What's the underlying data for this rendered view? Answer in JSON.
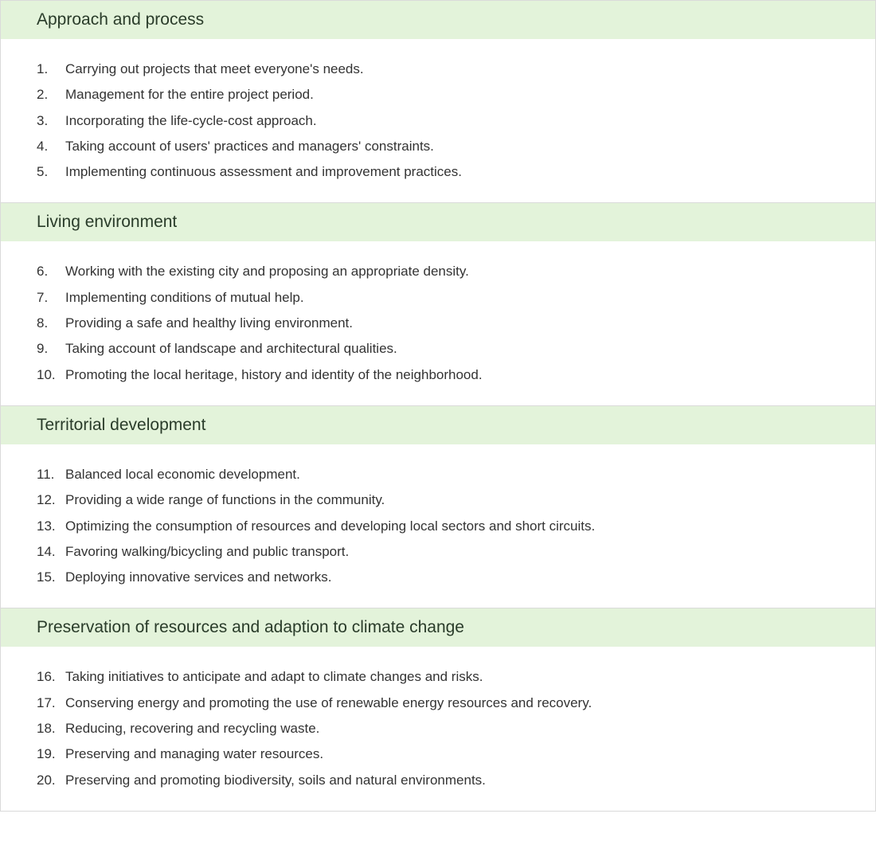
{
  "colors": {
    "header_bg": "#e3f3da",
    "header_text": "#2a3c2a",
    "body_text": "#333333",
    "border": "#dadada",
    "body_bg": "#ffffff"
  },
  "sections": [
    {
      "title": "Approach and process",
      "items": [
        {
          "num": "1.",
          "text": "Carrying out projects that meet everyone's needs."
        },
        {
          "num": "2.",
          "text": "Management for the entire project period."
        },
        {
          "num": "3.",
          "text": "Incorporating the life-cycle-cost approach."
        },
        {
          "num": "4.",
          "text": "Taking account of users' practices and managers' constraints."
        },
        {
          "num": "5.",
          "text": "Implementing continuous assessment and improvement practices."
        }
      ]
    },
    {
      "title": "Living environment",
      "items": [
        {
          "num": "6.",
          "text": "Working with the existing city and proposing an appropriate density."
        },
        {
          "num": "7.",
          "text": "Implementing conditions of mutual help."
        },
        {
          "num": "8.",
          "text": "Providing a safe and healthy living environment."
        },
        {
          "num": "9.",
          "text": "Taking account of landscape and architectural qualities."
        },
        {
          "num": "10.",
          "text": "Promoting the local heritage, history and identity of the neighborhood."
        }
      ]
    },
    {
      "title": "Territorial development",
      "items": [
        {
          "num": "11.",
          "text": "Balanced local economic development."
        },
        {
          "num": "12.",
          "text": "Providing a wide range of functions in the community."
        },
        {
          "num": "13.",
          "text": "Optimizing the consumption of resources and developing local sectors and short circuits."
        },
        {
          "num": "14.",
          "text": "Favoring walking/bicycling and public transport."
        },
        {
          "num": "15.",
          "text": "Deploying innovative services and networks."
        }
      ]
    },
    {
      "title": "Preservation of resources and adaption to climate change",
      "items": [
        {
          "num": "16.",
          "text": "Taking initiatives to anticipate and adapt to climate changes and risks."
        },
        {
          "num": "17.",
          "text": "Conserving energy and promoting the use of renewable energy resources and recovery."
        },
        {
          "num": "18.",
          "text": "Reducing, recovering and recycling waste."
        },
        {
          "num": "19.",
          "text": "Preserving and managing water resources."
        },
        {
          "num": "20.",
          "text": "Preserving and promoting biodiversity, soils and natural environments."
        }
      ]
    }
  ]
}
